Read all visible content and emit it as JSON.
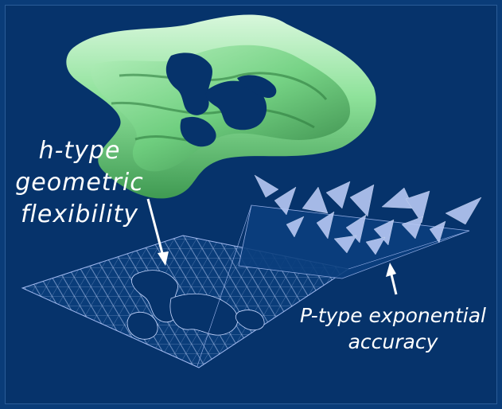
{
  "labels": {
    "h_type": [
      "h-type",
      "geometric",
      "flexibility"
    ],
    "p_type": [
      "P-type exponential",
      "accuracy"
    ]
  },
  "colors": {
    "background": "#06336b",
    "surface_green": "#8ee29a",
    "mesh": "#c8d8ff",
    "text": "#ffffff"
  }
}
